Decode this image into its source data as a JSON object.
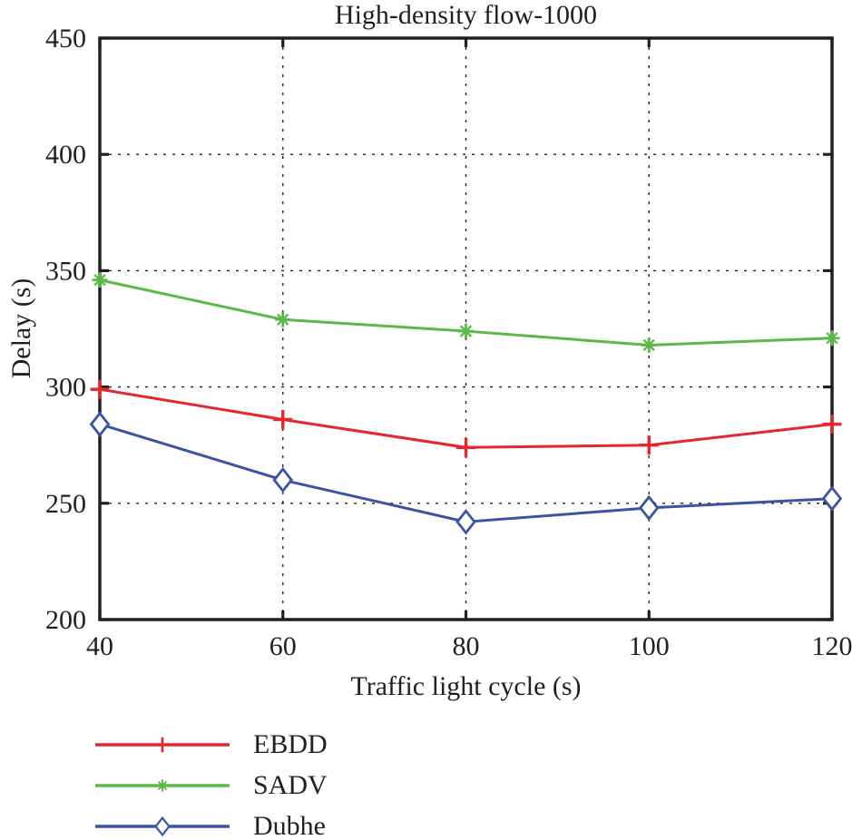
{
  "chart_data": {
    "type": "line",
    "title": "High-density flow-1000",
    "xlabel": "Traffic light cycle (s)",
    "ylabel": "Delay (s)",
    "x": [
      40,
      60,
      80,
      100,
      120
    ],
    "xticks": [
      40,
      60,
      80,
      100,
      120
    ],
    "yticks": [
      200,
      250,
      300,
      350,
      400,
      450
    ],
    "xlim": [
      40,
      120
    ],
    "ylim": [
      200,
      450
    ],
    "grid": "dotted",
    "legend_position": "below-left",
    "axis_color": "#231f20",
    "grid_color": "#231f20",
    "series": [
      {
        "name": "EBDD",
        "color": "#e5262c",
        "marker": "plus",
        "values": [
          299,
          286,
          274,
          275,
          284
        ]
      },
      {
        "name": "SADV",
        "color": "#5cb848",
        "marker": "asterisk",
        "values": [
          346,
          329,
          324,
          318,
          321
        ]
      },
      {
        "name": "Dubhe",
        "color": "#3a54a5",
        "marker": "diamond-open",
        "values": [
          284,
          260,
          242,
          248,
          252
        ]
      }
    ]
  }
}
